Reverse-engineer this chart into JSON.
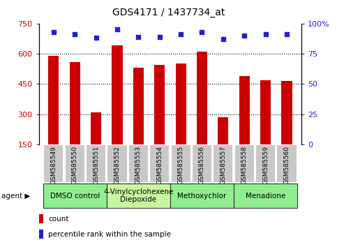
{
  "title": "GDS4171 / 1437734_at",
  "samples": [
    "GSM585549",
    "GSM585550",
    "GSM585551",
    "GSM585552",
    "GSM585553",
    "GSM585554",
    "GSM585555",
    "GSM585556",
    "GSM585557",
    "GSM585558",
    "GSM585559",
    "GSM585560"
  ],
  "counts": [
    590,
    560,
    310,
    640,
    530,
    545,
    550,
    610,
    285,
    490,
    470,
    465
  ],
  "percentile_ranks": [
    93,
    91,
    88,
    95,
    89,
    89,
    91,
    93,
    87,
    90,
    91,
    91
  ],
  "ylim_left": [
    150,
    750
  ],
  "yticks_left": [
    150,
    300,
    450,
    600,
    750
  ],
  "ylim_right": [
    0,
    100
  ],
  "yticks_right": [
    0,
    25,
    50,
    75,
    100
  ],
  "ytick_right_labels": [
    "0",
    "25",
    "50",
    "75",
    "100%"
  ],
  "hgrid_lines": [
    300,
    450,
    600
  ],
  "bar_color": "#cc0000",
  "dot_color": "#2222cc",
  "bar_width": 0.5,
  "dot_size": 22,
  "agents": [
    {
      "label": "DMSO control",
      "start": 0,
      "end": 3,
      "color": "#90ee90"
    },
    {
      "label": "4-Vinylcyclohexene\nDiepoxide",
      "start": 3,
      "end": 6,
      "color": "#c8f5a0"
    },
    {
      "label": "Methoxychlor",
      "start": 6,
      "end": 9,
      "color": "#90ee90"
    },
    {
      "label": "Menadione",
      "start": 9,
      "end": 12,
      "color": "#90ee90"
    }
  ],
  "xtick_bg_color": "#c8c8c8",
  "xtick_border_color": "#ffffff",
  "agent_border_color": "#333333",
  "legend_count_color": "#cc0000",
  "legend_pct_color": "#2222cc",
  "legend_count_label": "count",
  "legend_pct_label": "percentile rank within the sample",
  "agent_label": "agent",
  "title_fontsize": 10,
  "tick_fontsize": 8,
  "sample_fontsize": 6.5,
  "agent_fontsize": 7.5,
  "legend_fontsize": 7.5
}
